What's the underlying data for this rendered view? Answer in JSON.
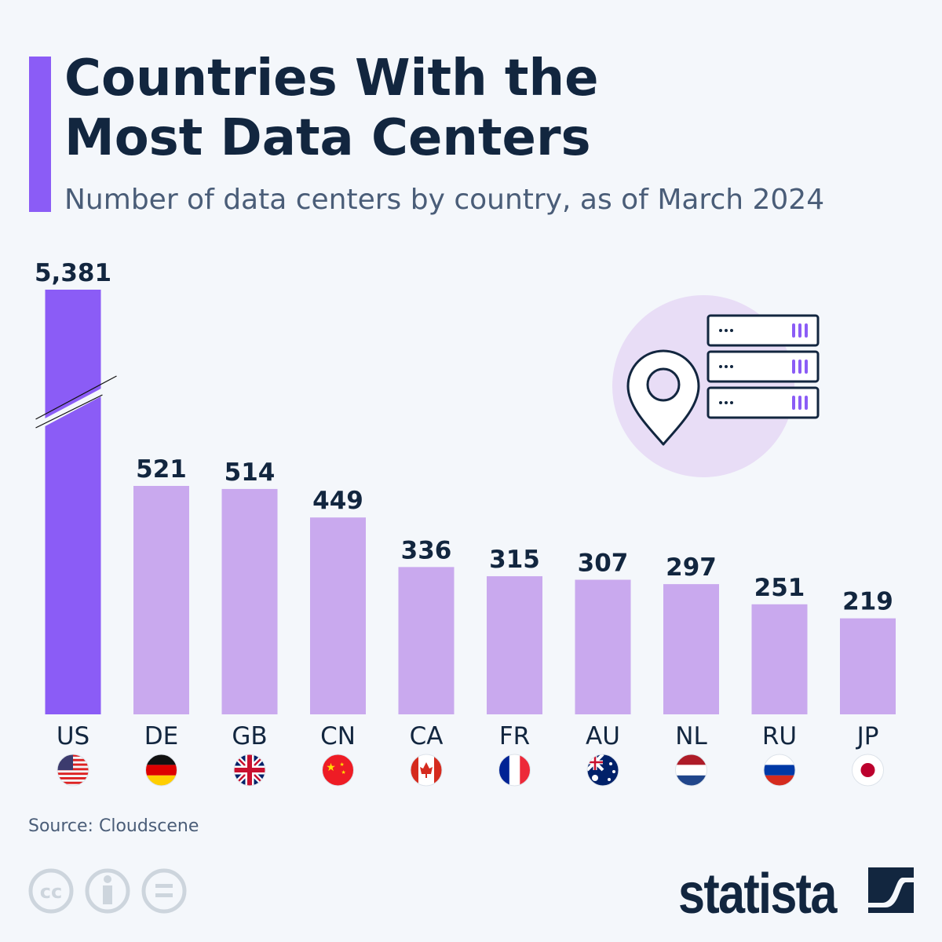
{
  "title_line1": "Countries With the",
  "title_line2": "Most Data Centers",
  "subtitle": "Number of data centers by country, as of March 2024",
  "source": "Source: Cloudscene",
  "brand": "statista",
  "colors": {
    "highlight": "#8b5cf6",
    "bar": "#c9a9ee",
    "text": "#12263f"
  },
  "chart_data": {
    "type": "bar",
    "categories": [
      "US",
      "DE",
      "GB",
      "CN",
      "CA",
      "FR",
      "AU",
      "NL",
      "RU",
      "JP"
    ],
    "values": [
      5381,
      521,
      514,
      449,
      336,
      315,
      307,
      297,
      251,
      219
    ],
    "value_labels": [
      "5,381",
      "521",
      "514",
      "449",
      "336",
      "315",
      "307",
      "297",
      "251",
      "219"
    ],
    "flags": [
      "us-flag-icon",
      "de-flag-icon",
      "gb-flag-icon",
      "cn-flag-icon",
      "ca-flag-icon",
      "fr-flag-icon",
      "au-flag-icon",
      "nl-flag-icon",
      "ru-flag-icon",
      "jp-flag-icon"
    ],
    "broken_axis_bar": "US",
    "grid": false
  }
}
